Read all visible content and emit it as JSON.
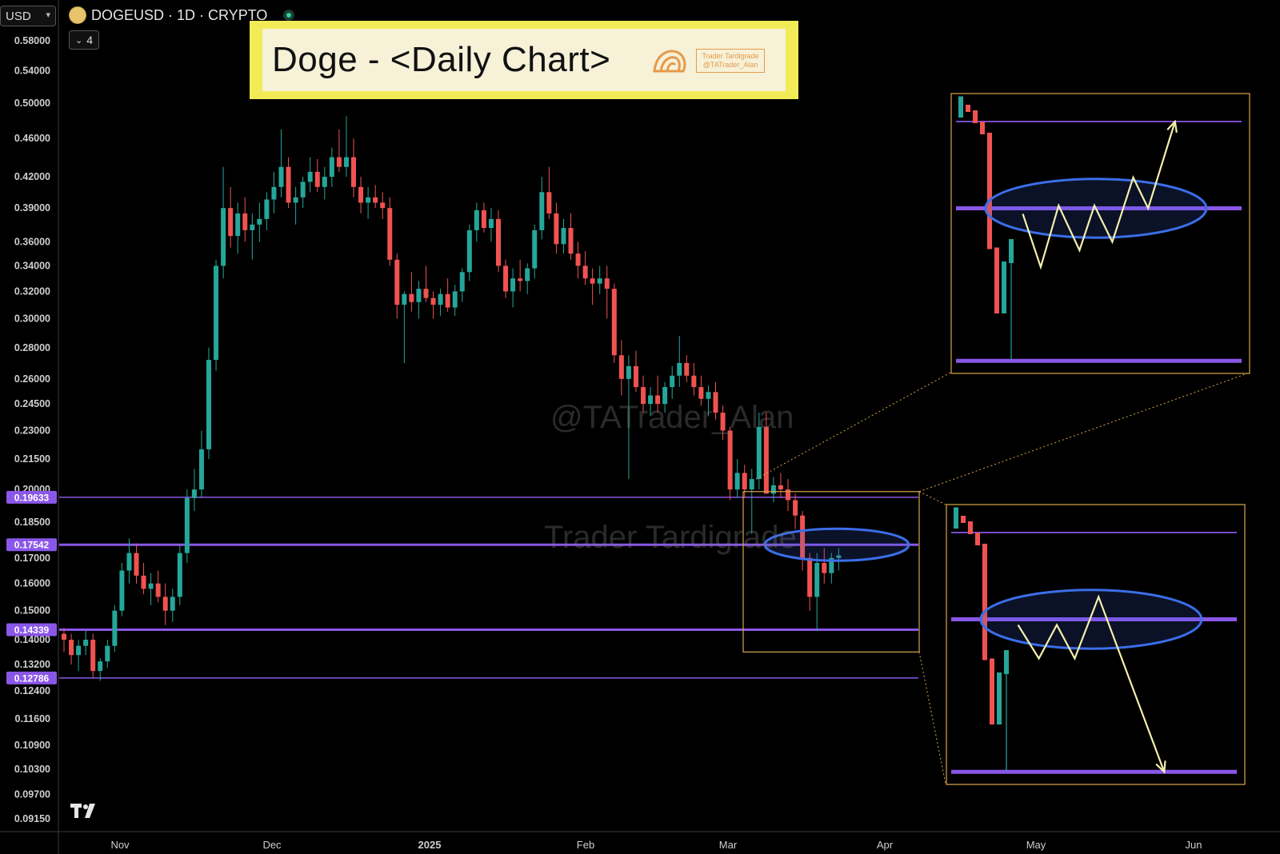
{
  "header": {
    "currency": "USD",
    "symbol": "DOGEUSD · 1D · CRYPTO",
    "indicator_count": "4",
    "title": "Doge - <Daily Chart>",
    "badge_line1": "Trader Tardigrade",
    "badge_line2": "@TATrader_Alan"
  },
  "watermarks": {
    "handle": "@TATrader_Alan",
    "name": "Trader Tardigrade"
  },
  "colors": {
    "up": "#26a69a",
    "down": "#ef5350",
    "level": "#8a57e8",
    "ellipse": "#3b6ee8",
    "path": "#f3efaa",
    "box": "#d9a74a"
  },
  "chart_data": {
    "type": "candlestick",
    "y_scale": "log",
    "ylim": [
      0.0905,
      0.59
    ],
    "y_ticks": [
      "0.58000",
      "0.54000",
      "0.50000",
      "0.46000",
      "0.42000",
      "0.39000",
      "0.36000",
      "0.34000",
      "0.32000",
      "0.30000",
      "0.28000",
      "0.26000",
      "0.24500",
      "0.23000",
      "0.21500",
      "0.20000",
      "0.18500",
      "0.17000",
      "0.16000",
      "0.15000",
      "0.14000",
      "0.13200",
      "0.12400",
      "0.11600",
      "0.10900",
      "0.10300",
      "0.09700",
      "0.09150"
    ],
    "x_labels": [
      "Nov",
      "Dec",
      "2025",
      "Feb",
      "Mar",
      "Apr",
      "May",
      "Jun"
    ],
    "levels": [
      {
        "label": "0.19633",
        "value": 0.19633,
        "weight": "thin"
      },
      {
        "label": "0.17542",
        "value": 0.17542,
        "weight": "bold"
      },
      {
        "label": "0.14339",
        "value": 0.14339,
        "weight": "bold"
      },
      {
        "label": "0.12786",
        "value": 0.12786,
        "weight": "thin"
      }
    ],
    "candles": [
      [
        0.142,
        0.144,
        0.136,
        0.14
      ],
      [
        0.14,
        0.142,
        0.132,
        0.135
      ],
      [
        0.135,
        0.14,
        0.13,
        0.138
      ],
      [
        0.138,
        0.143,
        0.135,
        0.14
      ],
      [
        0.14,
        0.142,
        0.128,
        0.13
      ],
      [
        0.13,
        0.134,
        0.127,
        0.133
      ],
      [
        0.133,
        0.14,
        0.131,
        0.138
      ],
      [
        0.138,
        0.152,
        0.136,
        0.15
      ],
      [
        0.15,
        0.168,
        0.148,
        0.165
      ],
      [
        0.165,
        0.178,
        0.16,
        0.172
      ],
      [
        0.172,
        0.176,
        0.16,
        0.163
      ],
      [
        0.163,
        0.168,
        0.156,
        0.158
      ],
      [
        0.158,
        0.164,
        0.152,
        0.16
      ],
      [
        0.16,
        0.165,
        0.153,
        0.155
      ],
      [
        0.155,
        0.16,
        0.145,
        0.15
      ],
      [
        0.15,
        0.158,
        0.146,
        0.155
      ],
      [
        0.155,
        0.175,
        0.152,
        0.172
      ],
      [
        0.172,
        0.2,
        0.168,
        0.196
      ],
      [
        0.196,
        0.21,
        0.19,
        0.2
      ],
      [
        0.2,
        0.23,
        0.196,
        0.22
      ],
      [
        0.22,
        0.28,
        0.215,
        0.272
      ],
      [
        0.272,
        0.345,
        0.265,
        0.34
      ],
      [
        0.34,
        0.43,
        0.33,
        0.39
      ],
      [
        0.39,
        0.41,
        0.355,
        0.365
      ],
      [
        0.365,
        0.395,
        0.35,
        0.385
      ],
      [
        0.385,
        0.4,
        0.36,
        0.37
      ],
      [
        0.37,
        0.385,
        0.345,
        0.375
      ],
      [
        0.375,
        0.395,
        0.36,
        0.38
      ],
      [
        0.38,
        0.405,
        0.37,
        0.398
      ],
      [
        0.398,
        0.425,
        0.385,
        0.41
      ],
      [
        0.41,
        0.47,
        0.4,
        0.43
      ],
      [
        0.43,
        0.44,
        0.39,
        0.395
      ],
      [
        0.395,
        0.41,
        0.375,
        0.4
      ],
      [
        0.4,
        0.42,
        0.39,
        0.415
      ],
      [
        0.415,
        0.44,
        0.405,
        0.425
      ],
      [
        0.425,
        0.438,
        0.405,
        0.41
      ],
      [
        0.41,
        0.43,
        0.398,
        0.42
      ],
      [
        0.42,
        0.45,
        0.41,
        0.44
      ],
      [
        0.44,
        0.47,
        0.425,
        0.43
      ],
      [
        0.43,
        0.485,
        0.42,
        0.44
      ],
      [
        0.44,
        0.46,
        0.4,
        0.41
      ],
      [
        0.41,
        0.42,
        0.385,
        0.395
      ],
      [
        0.395,
        0.41,
        0.38,
        0.4
      ],
      [
        0.4,
        0.412,
        0.39,
        0.395
      ],
      [
        0.395,
        0.405,
        0.38,
        0.39
      ],
      [
        0.39,
        0.4,
        0.34,
        0.345
      ],
      [
        0.345,
        0.35,
        0.3,
        0.31
      ],
      [
        0.31,
        0.32,
        0.27,
        0.318
      ],
      [
        0.318,
        0.335,
        0.305,
        0.312
      ],
      [
        0.312,
        0.328,
        0.3,
        0.322
      ],
      [
        0.322,
        0.34,
        0.312,
        0.315
      ],
      [
        0.315,
        0.32,
        0.3,
        0.31
      ],
      [
        0.31,
        0.322,
        0.302,
        0.318
      ],
      [
        0.318,
        0.33,
        0.305,
        0.308
      ],
      [
        0.308,
        0.325,
        0.302,
        0.32
      ],
      [
        0.32,
        0.338,
        0.312,
        0.335
      ],
      [
        0.335,
        0.375,
        0.328,
        0.37
      ],
      [
        0.37,
        0.395,
        0.36,
        0.388
      ],
      [
        0.388,
        0.395,
        0.368,
        0.372
      ],
      [
        0.372,
        0.39,
        0.36,
        0.38
      ],
      [
        0.38,
        0.388,
        0.335,
        0.34
      ],
      [
        0.34,
        0.345,
        0.315,
        0.32
      ],
      [
        0.32,
        0.338,
        0.308,
        0.33
      ],
      [
        0.33,
        0.345,
        0.32,
        0.328
      ],
      [
        0.328,
        0.342,
        0.318,
        0.338
      ],
      [
        0.338,
        0.375,
        0.33,
        0.37
      ],
      [
        0.37,
        0.42,
        0.362,
        0.405
      ],
      [
        0.405,
        0.43,
        0.38,
        0.385
      ],
      [
        0.385,
        0.395,
        0.35,
        0.358
      ],
      [
        0.358,
        0.38,
        0.35,
        0.372
      ],
      [
        0.372,
        0.385,
        0.345,
        0.35
      ],
      [
        0.35,
        0.36,
        0.33,
        0.34
      ],
      [
        0.34,
        0.352,
        0.325,
        0.33
      ],
      [
        0.33,
        0.338,
        0.31,
        0.326
      ],
      [
        0.326,
        0.34,
        0.318,
        0.33
      ],
      [
        0.33,
        0.34,
        0.3,
        0.322
      ],
      [
        0.322,
        0.326,
        0.27,
        0.275
      ],
      [
        0.275,
        0.285,
        0.25,
        0.26
      ],
      [
        0.26,
        0.275,
        0.205,
        0.268
      ],
      [
        0.268,
        0.278,
        0.252,
        0.255
      ],
      [
        0.255,
        0.262,
        0.24,
        0.245
      ],
      [
        0.245,
        0.255,
        0.238,
        0.25
      ],
      [
        0.25,
        0.262,
        0.24,
        0.245
      ],
      [
        0.245,
        0.258,
        0.24,
        0.255
      ],
      [
        0.255,
        0.268,
        0.248,
        0.262
      ],
      [
        0.262,
        0.288,
        0.255,
        0.27
      ],
      [
        0.27,
        0.275,
        0.258,
        0.262
      ],
      [
        0.262,
        0.27,
        0.25,
        0.255
      ],
      [
        0.255,
        0.262,
        0.244,
        0.248
      ],
      [
        0.248,
        0.256,
        0.238,
        0.252
      ],
      [
        0.252,
        0.258,
        0.236,
        0.24
      ],
      [
        0.24,
        0.244,
        0.225,
        0.23
      ],
      [
        0.23,
        0.232,
        0.195,
        0.2
      ],
      [
        0.2,
        0.215,
        0.196,
        0.208
      ],
      [
        0.208,
        0.212,
        0.196,
        0.2
      ],
      [
        0.2,
        0.21,
        0.18,
        0.205
      ],
      [
        0.205,
        0.24,
        0.2,
        0.232
      ],
      [
        0.232,
        0.24,
        0.2,
        0.198
      ],
      [
        0.198,
        0.206,
        0.194,
        0.202
      ],
      [
        0.202,
        0.208,
        0.196,
        0.2
      ],
      [
        0.2,
        0.205,
        0.19,
        0.195
      ],
      [
        0.195,
        0.198,
        0.182,
        0.188
      ],
      [
        0.188,
        0.19,
        0.165,
        0.17
      ],
      [
        0.17,
        0.172,
        0.15,
        0.155
      ],
      [
        0.155,
        0.172,
        0.143,
        0.168
      ],
      [
        0.168,
        0.174,
        0.16,
        0.164
      ],
      [
        0.164,
        0.172,
        0.16,
        0.17
      ],
      [
        0.17,
        0.174,
        0.165,
        0.171
      ]
    ]
  }
}
